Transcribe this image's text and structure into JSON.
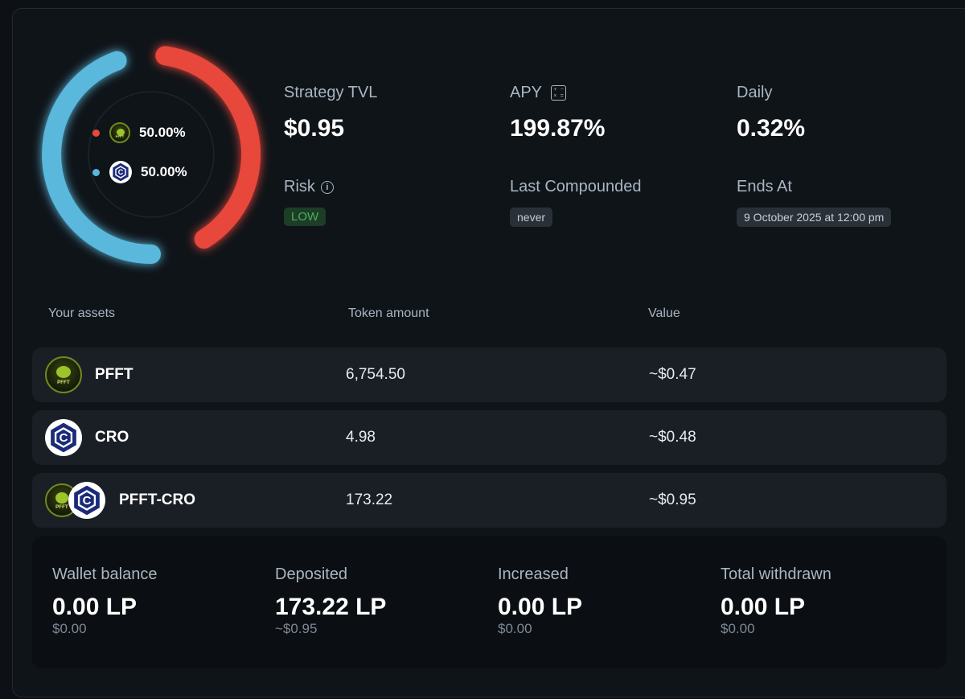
{
  "donut": {
    "pfft_color": "#e8473a",
    "cro_color": "#5ab8dc",
    "legend": [
      {
        "token": "PFFT",
        "percent": "50.00%",
        "dot_color": "#e8473a"
      },
      {
        "token": "CRO",
        "percent": "50.00%",
        "dot_color": "#5ab8dc"
      }
    ]
  },
  "stats": {
    "tvl_label": "Strategy TVL",
    "tvl_value": "$0.95",
    "apy_label": "APY",
    "apy_value": "199.87%",
    "daily_label": "Daily",
    "daily_value": "0.32%",
    "risk_label": "Risk",
    "risk_value": "LOW",
    "last_compounded_label": "Last Compounded",
    "last_compounded_value": "never",
    "ends_at_label": "Ends At",
    "ends_at_value": "9 October 2025 at 12:00 pm"
  },
  "assets": {
    "col_asset": "Your assets",
    "col_amount": "Token amount",
    "col_value": "Value",
    "rows": [
      {
        "name": "PFFT",
        "amount": "6,754.50",
        "value": "~$0.47"
      },
      {
        "name": "CRO",
        "amount": "4.98",
        "value": "~$0.48"
      },
      {
        "name": "PFFT-CRO",
        "amount": "173.22",
        "value": "~$0.95"
      }
    ]
  },
  "icons": {
    "pfft_text": "PFFT",
    "cro_letter": "C"
  },
  "balances": [
    {
      "label": "Wallet balance",
      "value": "0.00 LP",
      "usd": "$0.00"
    },
    {
      "label": "Deposited",
      "value": "173.22 LP",
      "usd": "~$0.95"
    },
    {
      "label": "Increased",
      "value": "0.00 LP",
      "usd": "$0.00"
    },
    {
      "label": "Total withdrawn",
      "value": "0.00 LP",
      "usd": "$0.00"
    }
  ]
}
